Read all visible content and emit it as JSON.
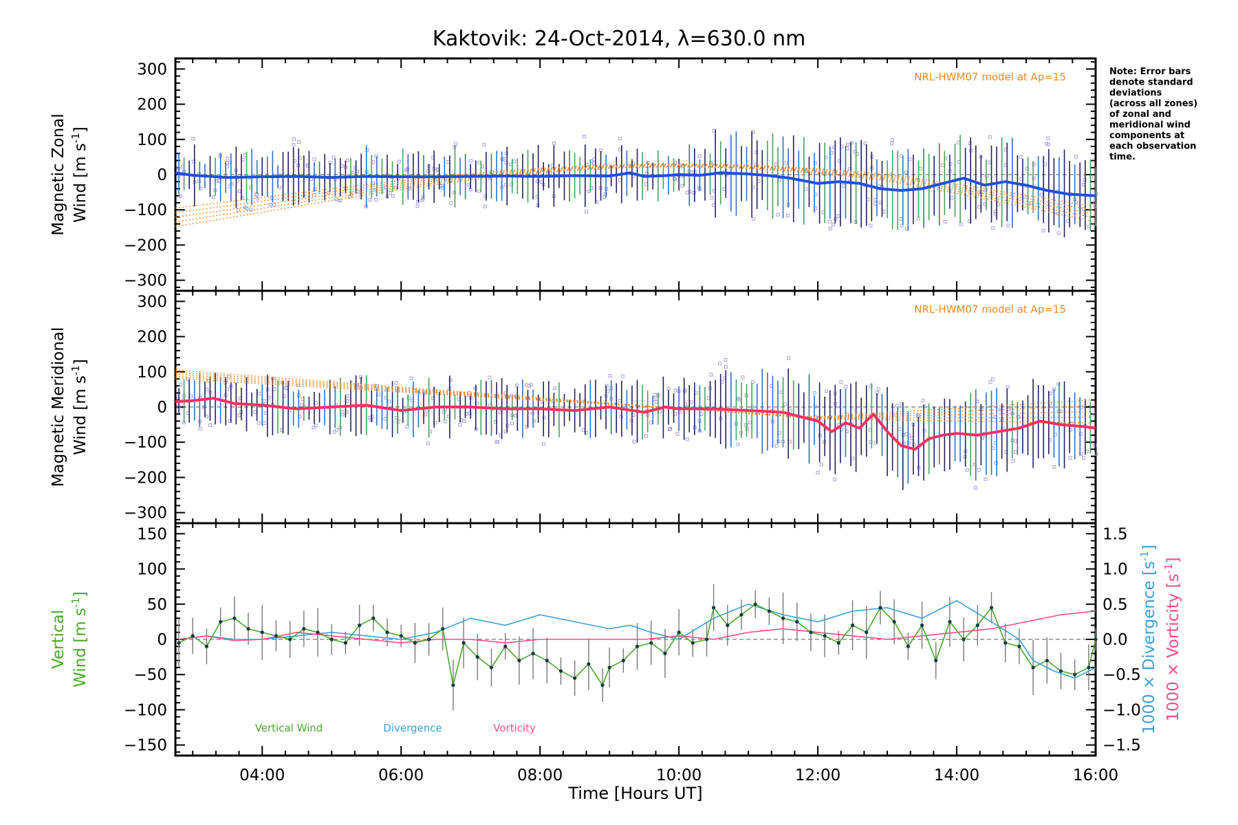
{
  "title": "Kaktovik: 24-Oct-2014, λ=630.0 nm",
  "note_lines": [
    "Note: Error bars",
    "denote standard",
    "deviations",
    "(across all zones)",
    "of zonal and",
    "meridional wind",
    "components at",
    "each observation",
    "time."
  ],
  "model_label": "NRL-HWM07 model at Ap=15",
  "colors": {
    "zonal": "#1f4fe0",
    "meridional": "#ff3060",
    "vertical": "#48a82a",
    "divergence": "#3aa0d8",
    "vorticity": "#ff4a8a",
    "model": "#f08a28",
    "scatter": "#a8a0e0",
    "errorbar": "#202060"
  },
  "chart_data": [
    {
      "type": "line",
      "panel": "zonal",
      "ylabel_line1": "Magnetic Zonal",
      "ylabel_line2": "Wind [m s",
      "ylabel_sup": "-1",
      "ylabel_end": "]",
      "ylim": [
        -330,
        330
      ],
      "yticks": [
        "300",
        "200",
        "100",
        "0",
        "−100",
        "−200",
        "−300"
      ],
      "ytick_values": [
        300,
        200,
        100,
        0,
        -100,
        -200,
        -300
      ],
      "xlim": [
        2.75,
        16.0
      ],
      "series": [
        {
          "x": [
            2.75,
            3.0,
            3.5,
            4.0,
            4.5,
            5.0,
            5.5,
            6.0,
            6.5,
            7.0,
            7.5,
            8.0,
            8.5,
            9.0,
            9.3,
            9.5,
            9.8,
            10.0,
            10.3,
            10.6,
            11.0,
            11.3,
            11.6,
            12.0,
            12.3,
            12.6,
            12.9,
            13.2,
            13.5,
            13.8,
            14.1,
            14.4,
            14.7,
            15.0,
            15.3,
            15.6,
            16.0
          ],
          "y": [
            5,
            -2,
            -8,
            -6,
            -5,
            -8,
            -5,
            -6,
            -6,
            -5,
            -4,
            -5,
            -3,
            -4,
            5,
            -5,
            -3,
            0,
            -2,
            5,
            2,
            -3,
            -10,
            -25,
            -20,
            -25,
            -40,
            -45,
            -40,
            -25,
            -10,
            -30,
            -20,
            -30,
            -45,
            -55,
            -60
          ]
        }
      ]
    },
    {
      "type": "line",
      "panel": "meridional",
      "ylabel_line1": "Magnetic Meridional",
      "ylabel_line2": "Wind [m s",
      "ylabel_sup": "-1",
      "ylabel_end": "]",
      "ylim": [
        -330,
        330
      ],
      "yticks": [
        "300",
        "200",
        "100",
        "0",
        "−100",
        "−200",
        "−300"
      ],
      "ytick_values": [
        300,
        200,
        100,
        0,
        -100,
        -200,
        -300
      ],
      "xlim": [
        2.75,
        16.0
      ],
      "series": [
        {
          "x": [
            2.75,
            3.0,
            3.3,
            3.6,
            4.0,
            4.5,
            5.0,
            5.5,
            6.0,
            6.5,
            7.0,
            7.5,
            8.0,
            8.5,
            9.0,
            9.5,
            9.8,
            10.0,
            10.5,
            11.0,
            11.5,
            12.0,
            12.2,
            12.4,
            12.6,
            12.8,
            13.0,
            13.2,
            13.4,
            13.6,
            13.8,
            14.0,
            14.3,
            14.6,
            14.9,
            15.2,
            15.5,
            15.8,
            16.0
          ],
          "y": [
            15,
            18,
            25,
            10,
            5,
            -5,
            0,
            5,
            -10,
            0,
            0,
            -5,
            -5,
            -10,
            0,
            -15,
            0,
            -5,
            -5,
            -10,
            -15,
            -40,
            -70,
            -45,
            -60,
            -20,
            -70,
            -110,
            -120,
            -90,
            -80,
            -75,
            -80,
            -70,
            -60,
            -40,
            -50,
            -55,
            -60
          ]
        }
      ]
    },
    {
      "type": "line",
      "panel": "vertical",
      "ylabel_line1": "Vertical",
      "ylabel_line2": "Wind [m s",
      "ylabel_sup": "-1",
      "ylabel_end": "]",
      "ylim": [
        -165,
        165
      ],
      "yticks": [
        "150",
        "100",
        "50",
        "0",
        "−50",
        "−100",
        "−150"
      ],
      "ytick_values": [
        150,
        100,
        50,
        0,
        -50,
        -100,
        -150
      ],
      "y2_label_div": "1000 × Divergence [s",
      "y2_label_vor": "1000 × Vorticity [s",
      "y2_sup": "-1",
      "y2_end": "]",
      "y2lim": [
        -1.65,
        1.65
      ],
      "y2ticks": [
        "1.5",
        "1.0",
        "0.5",
        "0.0",
        "−0.5",
        "−1.0",
        "−1.5"
      ],
      "y2tick_values": [
        1.5,
        1.0,
        0.5,
        0.0,
        -0.5,
        -1.0,
        -1.5
      ],
      "xlim": [
        2.75,
        16.0
      ],
      "xticks": [
        "04:00",
        "06:00",
        "08:00",
        "10:00",
        "12:00",
        "14:00",
        "16:00"
      ],
      "xtick_values": [
        4,
        6,
        8,
        10,
        12,
        14,
        16
      ],
      "xlabel": "Time [Hours UT]",
      "legend": [
        "Vertical Wind",
        "Divergence",
        "Vorticity"
      ],
      "series": [
        {
          "name": "Vertical Wind",
          "x": [
            2.8,
            3.0,
            3.2,
            3.4,
            3.6,
            3.8,
            4.0,
            4.2,
            4.4,
            4.6,
            4.8,
            5.0,
            5.2,
            5.4,
            5.6,
            5.8,
            6.0,
            6.2,
            6.4,
            6.6,
            6.75,
            6.9,
            7.1,
            7.3,
            7.5,
            7.7,
            7.9,
            8.1,
            8.3,
            8.5,
            8.7,
            8.9,
            9.0,
            9.2,
            9.4,
            9.6,
            9.8,
            10.0,
            10.2,
            10.4,
            10.5,
            10.7,
            10.9,
            11.1,
            11.3,
            11.5,
            11.7,
            11.9,
            12.1,
            12.3,
            12.5,
            12.7,
            12.9,
            13.1,
            13.3,
            13.5,
            13.7,
            13.9,
            14.1,
            14.3,
            14.5,
            14.7,
            14.9,
            15.1,
            15.3,
            15.5,
            15.7,
            15.9,
            16.0
          ],
          "y": [
            -5,
            5,
            -10,
            25,
            30,
            15,
            10,
            5,
            0,
            15,
            10,
            0,
            -5,
            20,
            30,
            10,
            5,
            -5,
            0,
            15,
            -65,
            -5,
            -25,
            -40,
            -10,
            -30,
            -20,
            -30,
            -45,
            -55,
            -35,
            -65,
            -40,
            -30,
            -10,
            -5,
            -20,
            10,
            -5,
            0,
            45,
            20,
            35,
            50,
            40,
            30,
            25,
            10,
            5,
            -5,
            20,
            10,
            45,
            25,
            -10,
            20,
            -30,
            25,
            0,
            20,
            45,
            -5,
            -10,
            -40,
            -30,
            -45,
            -50,
            -40,
            0
          ]
        },
        {
          "name": "Divergence",
          "x": [
            2.8,
            3.2,
            3.6,
            4.0,
            4.5,
            5.0,
            5.5,
            6.0,
            6.5,
            7.0,
            7.5,
            8.0,
            8.5,
            9.0,
            9.3,
            9.6,
            10.0,
            10.5,
            11.0,
            11.5,
            12.0,
            12.5,
            13.0,
            13.5,
            14.0,
            14.5,
            14.9,
            15.1,
            15.4,
            15.7,
            16.0
          ],
          "y": [
            0.0,
            0.05,
            0.0,
            0.0,
            0.05,
            0.1,
            0.05,
            0.0,
            0.1,
            0.3,
            0.2,
            0.35,
            0.25,
            0.15,
            0.2,
            0.1,
            0.0,
            0.3,
            0.5,
            0.35,
            0.25,
            0.4,
            0.45,
            0.3,
            0.55,
            0.25,
            0.0,
            -0.3,
            -0.45,
            -0.55,
            -0.4
          ]
        },
        {
          "name": "Vorticity",
          "x": [
            2.8,
            3.2,
            3.6,
            4.0,
            4.5,
            5.0,
            5.5,
            6.0,
            6.5,
            7.0,
            7.5,
            8.0,
            8.5,
            9.0,
            9.5,
            10.0,
            10.5,
            11.0,
            11.5,
            12.0,
            12.5,
            13.0,
            13.5,
            14.0,
            14.5,
            15.0,
            15.5,
            16.0
          ],
          "y": [
            0.0,
            0.05,
            -0.02,
            0.0,
            0.1,
            0.05,
            0.0,
            -0.05,
            0.0,
            0.0,
            -0.05,
            0.0,
            0.0,
            0.0,
            0.0,
            0.05,
            0.0,
            0.1,
            0.15,
            0.1,
            0.05,
            0.0,
            0.05,
            0.1,
            0.15,
            0.25,
            0.35,
            0.4
          ]
        }
      ]
    }
  ]
}
